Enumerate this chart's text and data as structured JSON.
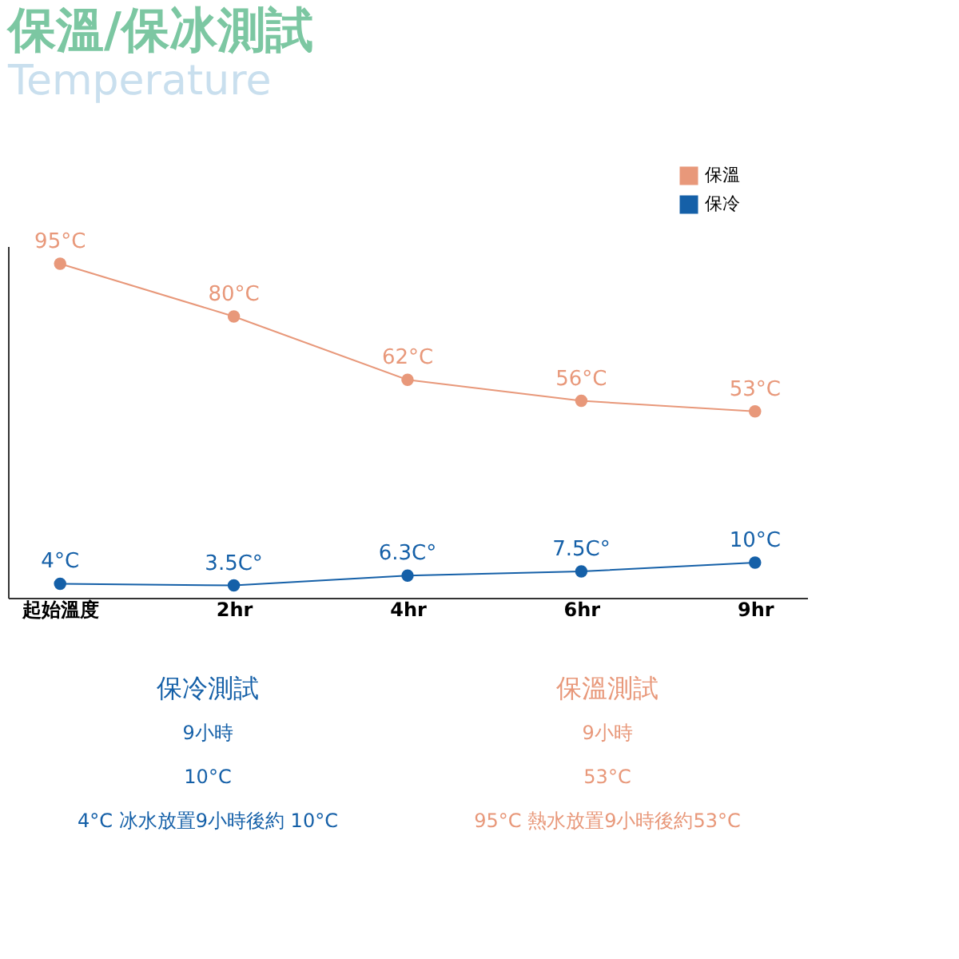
{
  "chart_data": {
    "type": "line",
    "title": "保溫/保冰測試",
    "subtitle": "Temperature",
    "categories": [
      "起始溫度",
      "2hr",
      "4hr",
      "6hr",
      "9hr"
    ],
    "series": [
      {
        "name": "保溫",
        "color": "#e8987a",
        "values": [
          95,
          80,
          62,
          56,
          53
        ],
        "value_labels": [
          "95°C",
          "80°C",
          "62°C",
          "56°C",
          "53°C"
        ]
      },
      {
        "name": "保冷",
        "color": "#1560a8",
        "values": [
          4,
          3.5,
          6.3,
          7.5,
          10
        ],
        "value_labels": [
          "4°C",
          "3.5C°",
          "6.3C°",
          "7.5C°",
          "10°C"
        ]
      }
    ],
    "ylim": [
      0,
      100
    ],
    "tick_labels": "x",
    "grid": false,
    "legend": "top right",
    "marker": "circle",
    "line_style": "solid",
    "annotations": [
      "保冷測試",
      "9小時",
      "10°C",
      "4°C 冰水放置9小時後約 10°C",
      "保溫測試",
      "9小時",
      "53°C",
      "95°C 熱水放置9小時後約53°C"
    ]
  }
}
